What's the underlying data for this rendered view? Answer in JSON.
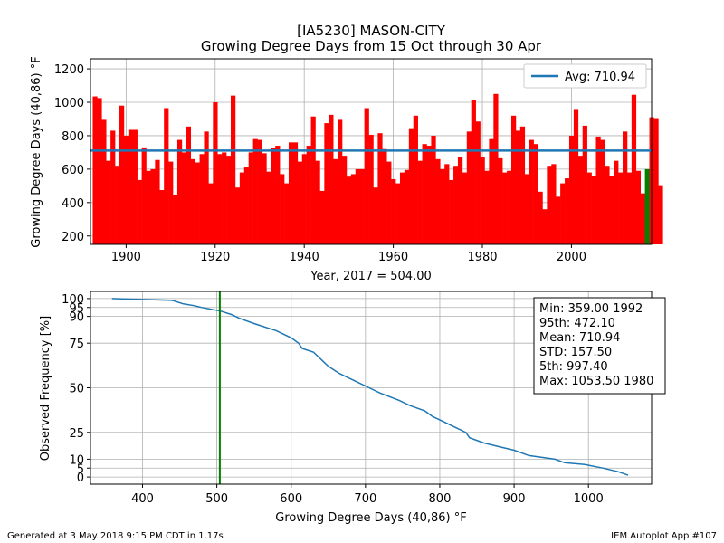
{
  "title": {
    "line1": "[IA5230] MASON-CITY",
    "line2": "Growing Degree Days from 15 Oct through 30 Apr"
  },
  "footer": {
    "left": "Generated at 3 May 2018 9:15 PM CDT in 1.17s",
    "right": "IEM Autoplot App #107"
  },
  "chart_data": [
    {
      "type": "bar",
      "xlabel": "Year, 2017 = 504.00",
      "ylabel": "Growing Degree Days (40,86) °F",
      "xlim": [
        1892,
        2018
      ],
      "ylim": [
        150,
        1260
      ],
      "xticks": [
        1900,
        1920,
        1940,
        1960,
        1980,
        2000
      ],
      "yticks": [
        200,
        400,
        600,
        800,
        1000,
        1200
      ],
      "grid": true,
      "legend_position": "top-right",
      "bar_color": "#ff0000",
      "highlight_color": "#008000",
      "avg_color": "#1f77b4",
      "average": {
        "label": "Avg: 710.94",
        "value": 710.94
      },
      "highlight": {
        "year": 2017,
        "value": 504.0
      },
      "x_start": 1893,
      "values": [
        1035,
        1025,
        895,
        650,
        830,
        620,
        980,
        800,
        835,
        835,
        535,
        730,
        590,
        600,
        655,
        475,
        965,
        645,
        445,
        775,
        700,
        855,
        660,
        640,
        690,
        825,
        515,
        1000,
        690,
        700,
        680,
        1040,
        490,
        580,
        610,
        700,
        780,
        775,
        695,
        585,
        725,
        740,
        570,
        515,
        760,
        760,
        645,
        690,
        740,
        915,
        650,
        470,
        875,
        925,
        660,
        895,
        680,
        555,
        570,
        600,
        600,
        965,
        805,
        490,
        815,
        720,
        645,
        540,
        515,
        580,
        595,
        845,
        920,
        650,
        750,
        740,
        800,
        660,
        600,
        630,
        535,
        620,
        670,
        580,
        825,
        1015,
        885,
        670,
        590,
        780,
        1050,
        665,
        580,
        590,
        920,
        830,
        855,
        570,
        775,
        750,
        465,
        360,
        620,
        630,
        435,
        515,
        545,
        800,
        960,
        680,
        860,
        580,
        560,
        795,
        775,
        620,
        560,
        650,
        580,
        825,
        580,
        1045,
        590,
        455,
        600,
        910,
        905,
        504
      ]
    },
    {
      "type": "line",
      "xlabel": "Growing Degree Days (40,86) °F",
      "ylabel": "Observed Frequency [%]",
      "xlim": [
        330,
        1085
      ],
      "ylim": [
        -4,
        104
      ],
      "xticks": [
        400,
        500,
        600,
        700,
        800,
        900,
        1000
      ],
      "yticks": [
        0,
        5,
        10,
        25,
        50,
        75,
        90,
        95,
        100
      ],
      "grid": true,
      "line_color": "#1f77b4",
      "marker_line": {
        "x": 504.0,
        "color": "#008000"
      },
      "stats": [
        "Min: 359.00 1992",
        "95th: 472.10",
        "Mean: 710.94",
        "STD: 157.50",
        "5th: 997.40",
        "Max: 1053.50 1980"
      ],
      "points": [
        [
          359,
          100
        ],
        [
          440,
          99
        ],
        [
          455,
          97
        ],
        [
          470,
          96
        ],
        [
          480,
          95
        ],
        [
          505,
          93
        ],
        [
          520,
          91
        ],
        [
          530,
          89
        ],
        [
          550,
          86
        ],
        [
          580,
          82
        ],
        [
          600,
          78
        ],
        [
          610,
          75
        ],
        [
          615,
          72
        ],
        [
          630,
          70
        ],
        [
          640,
          66
        ],
        [
          650,
          62
        ],
        [
          665,
          58
        ],
        [
          690,
          53
        ],
        [
          705,
          50
        ],
        [
          720,
          47
        ],
        [
          745,
          43
        ],
        [
          760,
          40
        ],
        [
          780,
          37
        ],
        [
          790,
          34
        ],
        [
          810,
          30
        ],
        [
          820,
          28
        ],
        [
          835,
          25
        ],
        [
          840,
          22
        ],
        [
          860,
          19
        ],
        [
          880,
          17
        ],
        [
          900,
          15
        ],
        [
          920,
          12
        ],
        [
          955,
          10
        ],
        [
          968,
          8
        ],
        [
          995,
          7
        ],
        [
          1020,
          5
        ],
        [
          1040,
          3
        ],
        [
          1053.5,
          1
        ]
      ]
    }
  ]
}
